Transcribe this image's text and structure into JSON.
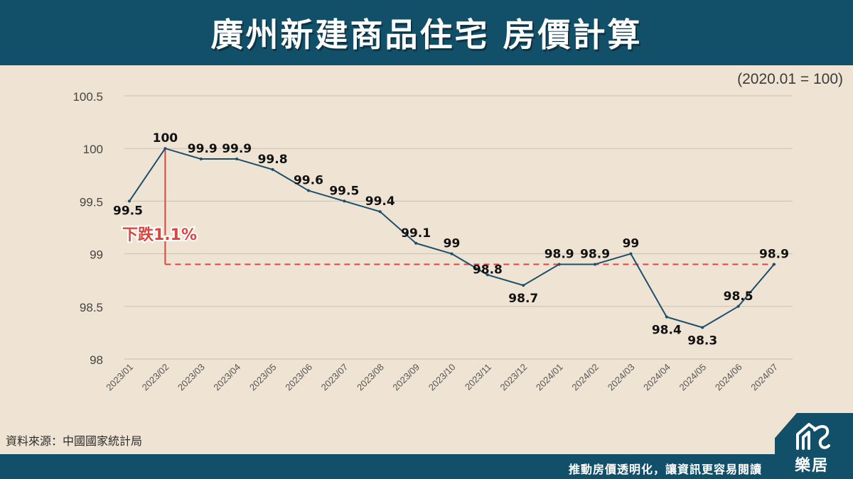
{
  "header": {
    "title": "廣州新建商品住宅 房價計算"
  },
  "unit_note": "(2020.01 = 100)",
  "source": "資料來源：中國國家統計局",
  "footer": {
    "slogan": "推動房價透明化，讓資訊更容易閱讀"
  },
  "brand": {
    "logo_text": "樂居"
  },
  "colors": {
    "header_bg": "#12506a",
    "background": "#efe4d4",
    "line": "#1d4f6a",
    "annotation": "#d9463f",
    "grid": "#c9c0b2"
  },
  "chart_data": {
    "type": "line",
    "categories": [
      "2023/01",
      "2023/02",
      "2023/03",
      "2023/04",
      "2023/05",
      "2023/06",
      "2023/07",
      "2023/08",
      "2023/09",
      "2023/10",
      "2023/11",
      "2023/12",
      "2024/01",
      "2024/02",
      "2024/03",
      "2024/04",
      "2024/05",
      "2024/06",
      "2024/07"
    ],
    "values": [
      99.5,
      100,
      99.9,
      99.9,
      99.8,
      99.6,
      99.5,
      99.4,
      99.1,
      99,
      98.8,
      98.7,
      98.9,
      98.9,
      99,
      98.4,
      98.3,
      98.5,
      98.9
    ],
    "data_labels": [
      "99.5",
      "100",
      "99.9",
      "99.9",
      "99.8",
      "99.6",
      "99.5",
      "99.4",
      "99.1",
      "99",
      "98.8",
      "98.7",
      "98.9",
      "98.9",
      "99",
      "98.4",
      "98.3",
      "98.5",
      "98.9"
    ],
    "yticks": [
      "100.5",
      "100",
      "99.5",
      "99",
      "98.5",
      "98"
    ],
    "ylim": [
      98,
      100.5
    ],
    "grid": true,
    "annotation": {
      "text": "下跌1.1%",
      "from_value": 100,
      "to_value": 98.9
    }
  }
}
